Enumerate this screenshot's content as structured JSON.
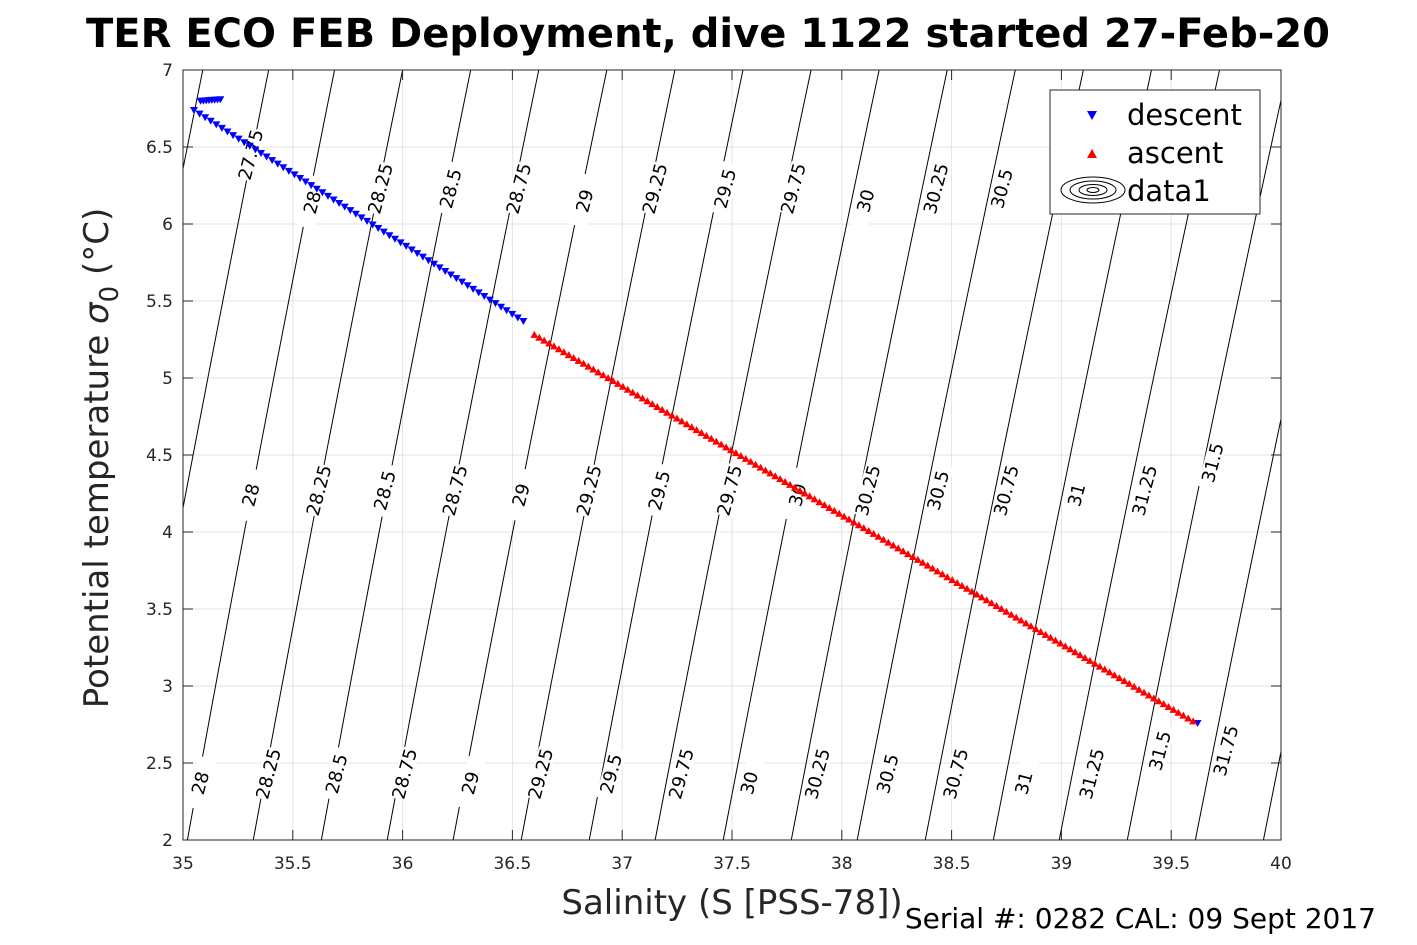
{
  "chart_data": {
    "type": "scatter",
    "title": "TER ECO FEB Deployment, dive 1122 started 27-Feb-20",
    "xlabel": "Salinity (S [PSS-78])",
    "ylabel_main": "Potential temperature",
    "ylabel_symbol": "σ",
    "ylabel_subscript": "0",
    "ylabel_unit": "(°C)",
    "xlim": [
      35,
      40
    ],
    "ylim": [
      2,
      7
    ],
    "grid": true,
    "x_ticks": [
      "35",
      "35.5",
      "36",
      "36.5",
      "37",
      "37.5",
      "38",
      "38.5",
      "39",
      "39.5",
      "40"
    ],
    "y_ticks": [
      "2",
      "2.5",
      "3",
      "3.5",
      "4",
      "4.5",
      "5",
      "5.5",
      "6",
      "6.5",
      "7"
    ],
    "legend_position": "top-right",
    "legend": [
      {
        "label": "descent",
        "marker": "triangle-down",
        "color": "#0000ff"
      },
      {
        "label": "ascent",
        "marker": "triangle-up",
        "color": "#ff0000"
      },
      {
        "label": "data1",
        "marker": "contour",
        "color": "#000000"
      }
    ],
    "series": [
      {
        "name": "descent",
        "marker": "triangle-down",
        "color": "#0000ff",
        "segments": [
          {
            "from": [
              35.05,
              6.74
            ],
            "to": [
              36.55,
              5.37
            ],
            "n": 60
          },
          {
            "from": [
              35.08,
              6.8
            ],
            "to": [
              35.17,
              6.81
            ],
            "n": 8
          },
          {
            "from": [
              39.62,
              2.76
            ],
            "to": [
              39.62,
              2.76
            ],
            "n": 1
          }
        ]
      },
      {
        "name": "ascent",
        "marker": "triangle-up",
        "color": "#ff0000",
        "segments": [
          {
            "from": [
              36.6,
              5.28
            ],
            "to": [
              39.6,
              2.77
            ],
            "n": 135
          }
        ]
      }
    ],
    "contours": {
      "description_values": [
        "27.75",
        "28",
        "28.25",
        "28.5",
        "28.75",
        "29",
        "29.25",
        "29.5",
        "29.75",
        "30",
        "30.25",
        "30.5",
        "30.75",
        "31",
        "31.25",
        "31.5",
        "31.75"
      ],
      "lines": [
        {
          "x_bottom": 34.42,
          "x_top": 35.09
        },
        {
          "x_bottom": 34.72,
          "x_top": 35.39
        },
        {
          "x_bottom": 35.02,
          "x_top": 35.69
        },
        {
          "x_bottom": 35.32,
          "x_top": 36.0
        },
        {
          "x_bottom": 35.63,
          "x_top": 36.31
        },
        {
          "x_bottom": 35.93,
          "x_top": 36.62
        },
        {
          "x_bottom": 36.23,
          "x_top": 36.93
        },
        {
          "x_bottom": 36.54,
          "x_top": 37.24
        },
        {
          "x_bottom": 36.85,
          "x_top": 37.55
        },
        {
          "x_bottom": 37.15,
          "x_top": 37.86
        },
        {
          "x_bottom": 37.46,
          "x_top": 38.17
        },
        {
          "x_bottom": 37.77,
          "x_top": 38.48
        },
        {
          "x_bottom": 38.07,
          "x_top": 38.79
        },
        {
          "x_bottom": 38.38,
          "x_top": 39.1
        },
        {
          "x_bottom": 38.69,
          "x_top": 39.41
        },
        {
          "x_bottom": 38.99,
          "x_top": 39.72
        },
        {
          "x_bottom": 39.3,
          "x_top": 40.03
        },
        {
          "x_bottom": 39.61,
          "x_top": 40.34
        },
        {
          "x_bottom": 39.92,
          "x_top": 40.65
        }
      ],
      "labels": [
        {
          "text": "27.75",
          "x": 35.31,
          "y": 6.45
        },
        {
          "text": "28",
          "x": 35.59,
          "y": 6.14
        },
        {
          "text": "28.25",
          "x": 35.9,
          "y": 6.23
        },
        {
          "text": "28.5",
          "x": 36.22,
          "y": 6.23
        },
        {
          "text": "28.75",
          "x": 36.53,
          "y": 6.23
        },
        {
          "text": "29",
          "x": 36.83,
          "y": 6.15
        },
        {
          "text": "29.25",
          "x": 37.15,
          "y": 6.23
        },
        {
          "text": "29.5",
          "x": 37.47,
          "y": 6.23
        },
        {
          "text": "29.75",
          "x": 37.78,
          "y": 6.23
        },
        {
          "text": "30",
          "x": 38.11,
          "y": 6.15
        },
        {
          "text": "30.25",
          "x": 38.43,
          "y": 6.23
        },
        {
          "text": "30.5",
          "x": 38.73,
          "y": 6.23
        },
        {
          "text": "28",
          "x": 35.31,
          "y": 4.24
        },
        {
          "text": "28.25",
          "x": 35.62,
          "y": 4.27
        },
        {
          "text": "28.5",
          "x": 35.92,
          "y": 4.27
        },
        {
          "text": "28.75",
          "x": 36.24,
          "y": 4.27
        },
        {
          "text": "29",
          "x": 36.54,
          "y": 4.24
        },
        {
          "text": "29.25",
          "x": 36.85,
          "y": 4.27
        },
        {
          "text": "29.5",
          "x": 37.17,
          "y": 4.27
        },
        {
          "text": "29.75",
          "x": 37.49,
          "y": 4.27
        },
        {
          "text": "30",
          "x": 37.8,
          "y": 4.24
        },
        {
          "text": "30.25",
          "x": 38.12,
          "y": 4.27
        },
        {
          "text": "30.5",
          "x": 38.44,
          "y": 4.27
        },
        {
          "text": "30.75",
          "x": 38.75,
          "y": 4.27
        },
        {
          "text": "31",
          "x": 39.07,
          "y": 4.24
        },
        {
          "text": "31.25",
          "x": 39.38,
          "y": 4.27
        },
        {
          "text": "31.5",
          "x": 39.69,
          "y": 4.45
        },
        {
          "text": "28",
          "x": 35.08,
          "y": 2.37
        },
        {
          "text": "28.25",
          "x": 35.39,
          "y": 2.43
        },
        {
          "text": "28.5",
          "x": 35.7,
          "y": 2.43
        },
        {
          "text": "28.75",
          "x": 36.01,
          "y": 2.43
        },
        {
          "text": "29",
          "x": 36.31,
          "y": 2.37
        },
        {
          "text": "29.25",
          "x": 36.63,
          "y": 2.43
        },
        {
          "text": "29.5",
          "x": 36.95,
          "y": 2.43
        },
        {
          "text": "29.75",
          "x": 37.27,
          "y": 2.43
        },
        {
          "text": "30",
          "x": 37.58,
          "y": 2.37
        },
        {
          "text": "30.25",
          "x": 37.89,
          "y": 2.43
        },
        {
          "text": "30.5",
          "x": 38.21,
          "y": 2.43
        },
        {
          "text": "30.75",
          "x": 38.52,
          "y": 2.43
        },
        {
          "text": "31",
          "x": 38.83,
          "y": 2.37
        },
        {
          "text": "31.25",
          "x": 39.14,
          "y": 2.43
        },
        {
          "text": "31.5",
          "x": 39.45,
          "y": 2.58
        },
        {
          "text": "31.75",
          "x": 39.75,
          "y": 2.58
        }
      ]
    }
  },
  "footer": {
    "serial_text": "Serial #: 0282  CAL: 09 Sept 2017"
  }
}
